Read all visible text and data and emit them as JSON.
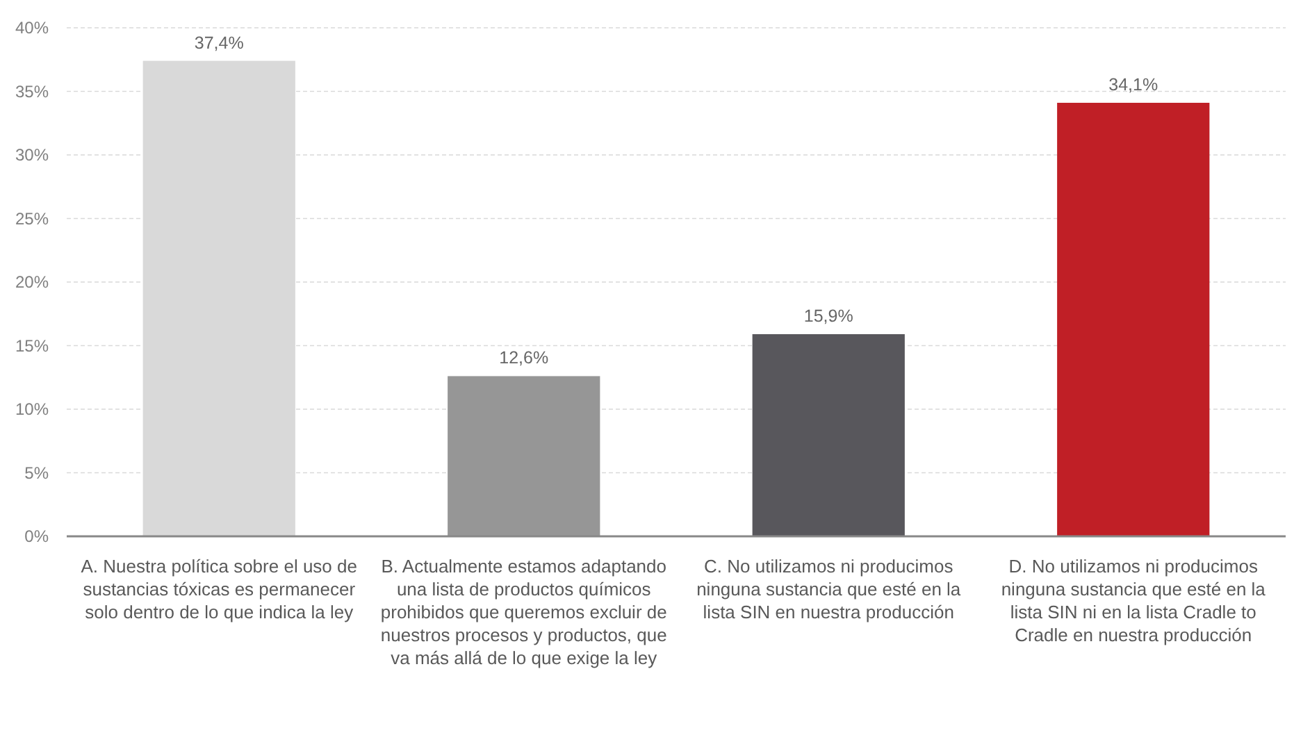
{
  "chart_data": {
    "type": "bar",
    "categories": [
      "A. Nuestra política sobre el uso de sustancias tóxicas es permanecer solo dentro de lo que indica la ley",
      "B. Actualmente estamos adaptando una lista de productos químicos prohibidos que queremos excluir de nuestros procesos y productos, que va más allá de lo que exige la ley",
      "C. No utilizamos ni producimos ninguna sustancia que esté en la lista SIN en nuestra producción",
      "D. No utilizamos ni producimos ninguna sustancia que esté en la lista SIN ni en la lista Cradle to Cradle en nuestra producción"
    ],
    "values": [
      37.4,
      12.6,
      15.9,
      34.1
    ],
    "colors": [
      "#d9d9d9",
      "#969696",
      "#58575c",
      "#c01f26"
    ],
    "value_labels": [
      "37,4%",
      "12,6%",
      "15,9%",
      "34,1%"
    ],
    "ylim": [
      0,
      40
    ],
    "yticks": [
      {
        "value": 0,
        "label": "0%"
      },
      {
        "value": 5,
        "label": "5%"
      },
      {
        "value": 10,
        "label": "10%"
      },
      {
        "value": 15,
        "label": "15%"
      },
      {
        "value": 20,
        "label": "20%"
      },
      {
        "value": 25,
        "label": "25%"
      },
      {
        "value": 30,
        "label": "30%"
      },
      {
        "value": 35,
        "label": "35%"
      },
      {
        "value": 40,
        "label": "40%"
      }
    ],
    "grid": "y"
  }
}
